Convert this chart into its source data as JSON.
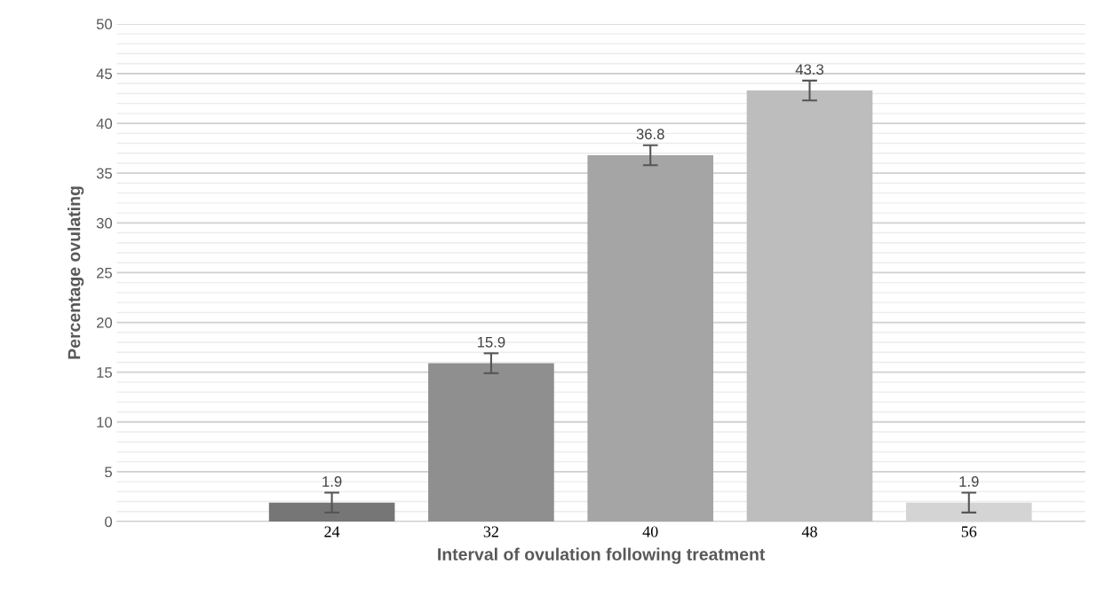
{
  "chart_data": {
    "type": "bar",
    "xlabel": "Interval of ovulation following treatment",
    "ylabel": "Percentage ovulating",
    "categories": [
      "24",
      "32",
      "40",
      "48",
      "56"
    ],
    "values": [
      1.9,
      15.9,
      36.8,
      43.3,
      1.9
    ],
    "errors": [
      1,
      1,
      1,
      1,
      1
    ],
    "colors": [
      "#767676",
      "#8f8f8f",
      "#a5a5a5",
      "#bdbdbd",
      "#d4d4d4"
    ],
    "data_labels": true,
    "ylim": [
      0,
      50
    ],
    "yticks": [
      0,
      5,
      10,
      15,
      20,
      25,
      30,
      35,
      40,
      45,
      50
    ],
    "grid": "y"
  }
}
